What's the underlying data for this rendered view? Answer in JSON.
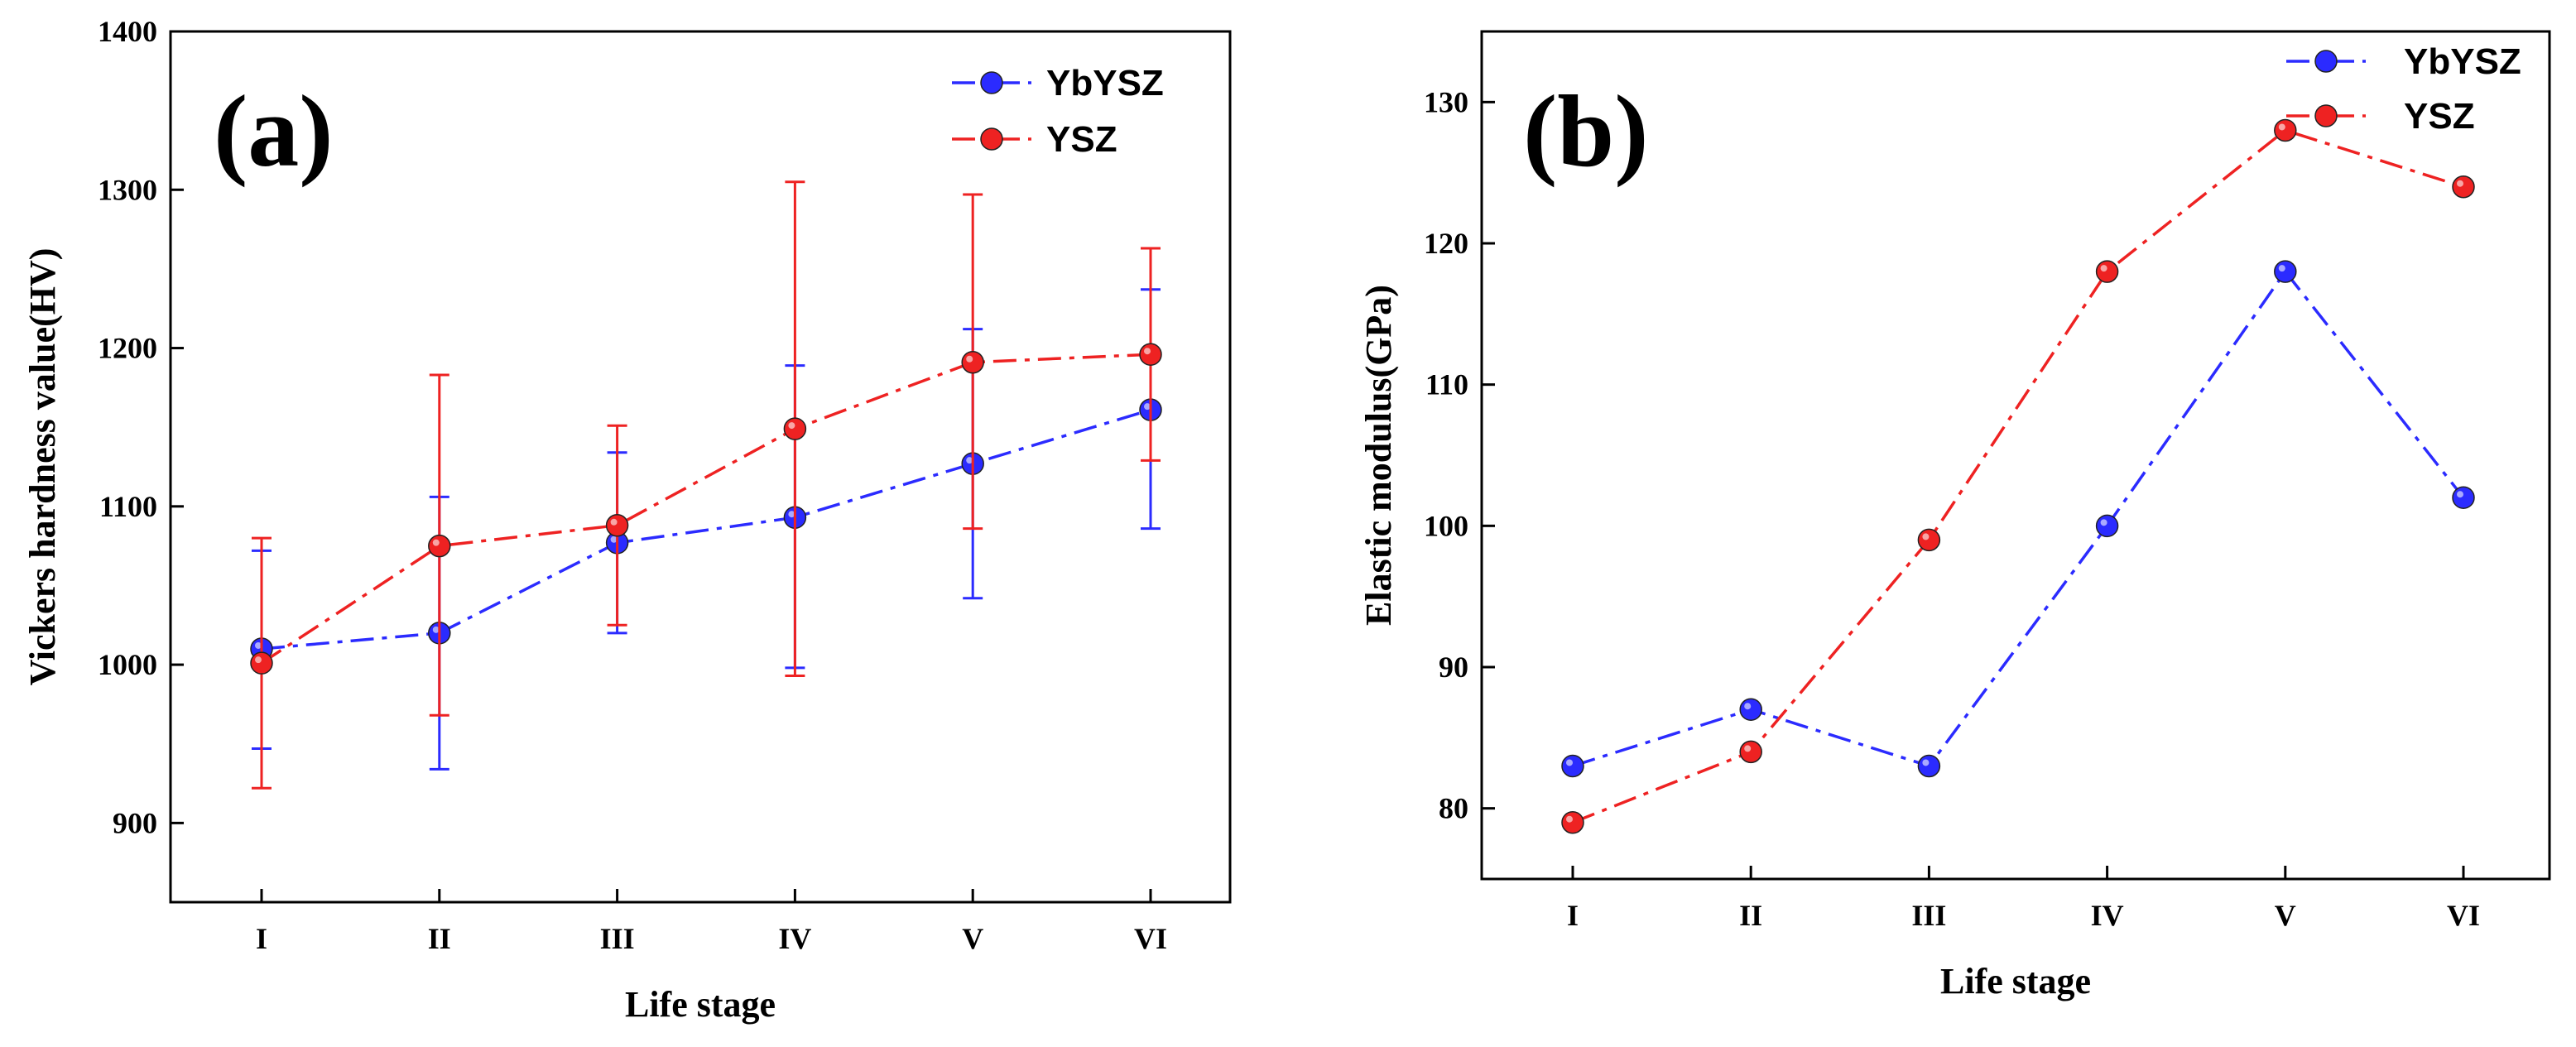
{
  "chart_data": [
    {
      "type": "line",
      "panel_label": "(a)",
      "title": "",
      "xlabel": "Life stage",
      "ylabel": "Vickers hardness value(HV)",
      "categories": [
        "I",
        "II",
        "III",
        "IV",
        "V",
        "VI"
      ],
      "ylim": [
        850,
        1400
      ],
      "yticks": [
        900,
        1000,
        1100,
        1200,
        1300,
        1400
      ],
      "grid": false,
      "legend_position": "top-right",
      "series": [
        {
          "name": "YbYSZ",
          "color": "#2b2bff",
          "values": [
            1010,
            1020,
            1077,
            1093,
            1127,
            1161
          ],
          "err_low": [
            947,
            934,
            1020,
            998,
            1042,
            1086
          ],
          "err_high": [
            1072,
            1106,
            1134,
            1189,
            1212,
            1237
          ]
        },
        {
          "name": "YSZ",
          "color": "#ee2222",
          "values": [
            1001,
            1075,
            1088,
            1149,
            1191,
            1196
          ],
          "err_low": [
            922,
            968,
            1025,
            993,
            1086,
            1129
          ],
          "err_high": [
            1080,
            1183,
            1151,
            1305,
            1297,
            1263
          ]
        }
      ]
    },
    {
      "type": "line",
      "panel_label": "(b)",
      "title": "",
      "xlabel": "Life stage",
      "ylabel": "Elastic modulus(GPa)",
      "categories": [
        "I",
        "II",
        "III",
        "IV",
        "V",
        "VI"
      ],
      "ylim": [
        75,
        135
      ],
      "yticks": [
        80,
        90,
        100,
        110,
        120,
        130
      ],
      "grid": false,
      "legend_position": "top-right",
      "series": [
        {
          "name": "YbYSZ",
          "color": "#2b2bff",
          "values": [
            83,
            87,
            83,
            100,
            118,
            102
          ]
        },
        {
          "name": "YSZ",
          "color": "#ee2222",
          "values": [
            79,
            84,
            99,
            118,
            128,
            124
          ]
        }
      ]
    }
  ]
}
